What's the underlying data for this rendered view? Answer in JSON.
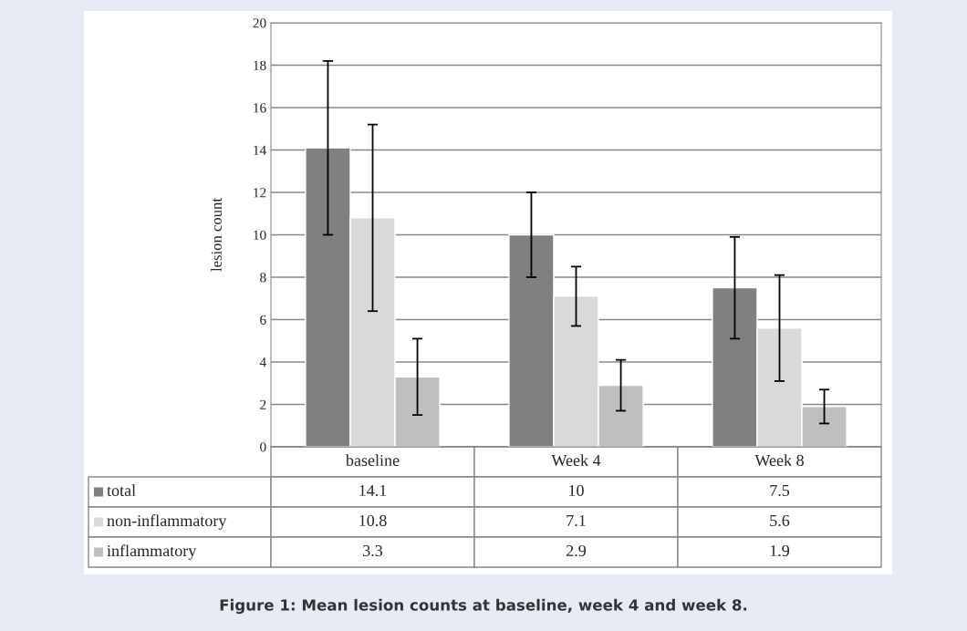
{
  "chart_data": {
    "type": "bar",
    "ylabel": "lesion count",
    "categories": [
      "baseline",
      "Week 4",
      "Week 8"
    ],
    "series": [
      {
        "name": "total",
        "color": "#808080",
        "values": [
          14.1,
          10,
          7.5
        ],
        "errors": [
          4.1,
          2.0,
          2.4
        ]
      },
      {
        "name": "non-inflammatory",
        "color": "#d9d9d9",
        "values": [
          10.8,
          7.1,
          5.6
        ],
        "errors": [
          4.4,
          1.4,
          2.5
        ]
      },
      {
        "name": "inflammatory",
        "color": "#bfbfbf",
        "values": [
          3.3,
          2.9,
          1.9
        ],
        "errors": [
          1.8,
          1.2,
          0.8
        ]
      }
    ],
    "ylim": [
      0,
      20
    ],
    "yticks": [
      0,
      2,
      4,
      6,
      8,
      10,
      12,
      14,
      16,
      18,
      20
    ],
    "grid": "y",
    "data_labels": true,
    "legend": "bottom",
    "annotations": [
      "Figure 1: Mean lesion counts at baseline, week 4 and week 8."
    ]
  }
}
